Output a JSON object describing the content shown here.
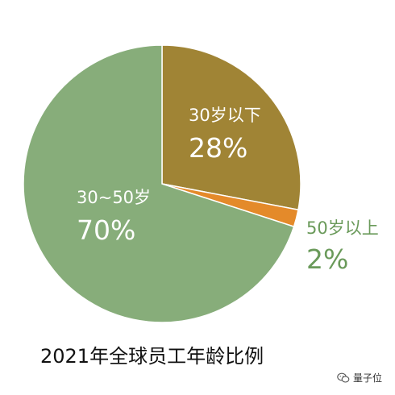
{
  "chart_data": {
    "type": "pie",
    "title": "2021年全球员工年龄比例",
    "slices": [
      {
        "label": "30岁以下",
        "value": 28,
        "value_label": "28%",
        "color": "#a08435",
        "label_style": "inside"
      },
      {
        "label": "50岁以上",
        "value": 2,
        "value_label": "2%",
        "color": "#e48a2a",
        "label_style": "outside"
      },
      {
        "label": "30~50岁",
        "value": 70,
        "value_label": "70%",
        "color": "#87ad7a",
        "label_style": "inside"
      }
    ],
    "start_angle": "12 o'clock",
    "direction": "clockwise",
    "legend": "none"
  },
  "watermark": {
    "icon": "wechat-icon",
    "text": "量子位"
  }
}
